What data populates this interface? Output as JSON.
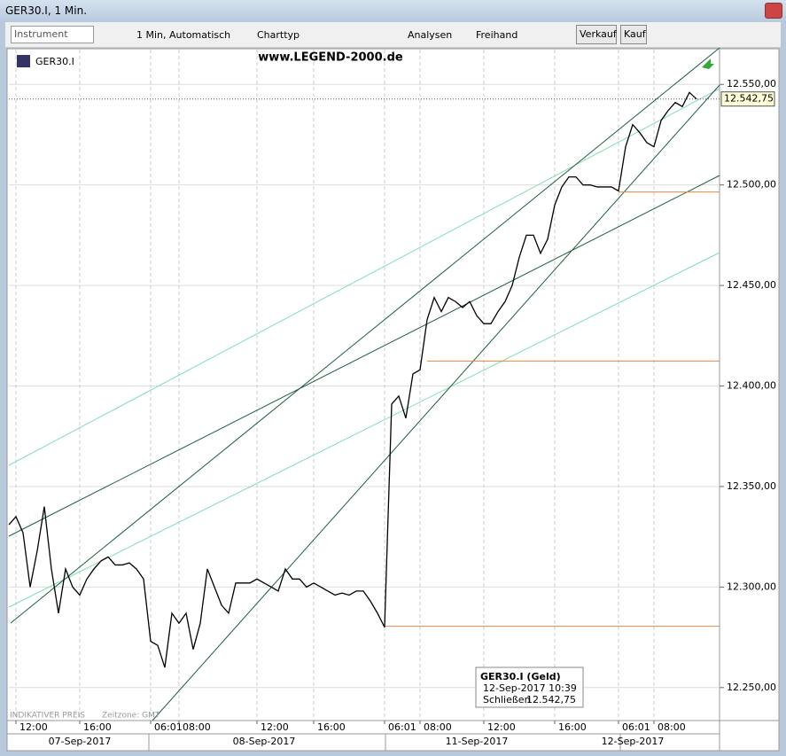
{
  "window": {
    "title": "GER30.I, 1 Min."
  },
  "toolbar": {
    "instrument": "Instrument",
    "interval": "1 Min, Automatisch",
    "chart_type": "Charttyp",
    "analyses": "Analysen",
    "freehand": "Freihand",
    "sell": "Verkauf",
    "buy": "Kauf"
  },
  "chart_data": {
    "type": "line",
    "watermark": "www.LEGEND-2000.de",
    "footer": "INDIKATIVER PREIS",
    "timezone": "Zeitzone: GMT",
    "categories": [
      null,
      "12:00",
      null,
      null,
      null,
      null,
      null,
      null,
      null,
      null,
      "16:00",
      null,
      null,
      null,
      null,
      null,
      null,
      null,
      null,
      null,
      "06:01",
      null,
      null,
      null,
      "08:00",
      null,
      null,
      null,
      null,
      null,
      null,
      null,
      null,
      null,
      null,
      "12:00",
      null,
      null,
      null,
      null,
      null,
      null,
      null,
      "16:00",
      null,
      null,
      null,
      null,
      null,
      null,
      null,
      null,
      null,
      "06:01",
      null,
      null,
      null,
      null,
      "08:00",
      null,
      null,
      null,
      null,
      null,
      null,
      null,
      null,
      "12:00",
      null,
      null,
      null,
      null,
      null,
      null,
      null,
      null,
      null,
      "16:00",
      null,
      null,
      null,
      null,
      null,
      null,
      null,
      null,
      "06:01",
      null,
      null,
      null,
      null,
      "08:00",
      null,
      null,
      null,
      null,
      null,
      null,
      null,
      null,
      null
    ],
    "day_labels": [
      null,
      null,
      null,
      null,
      null,
      null,
      null,
      null,
      null,
      null,
      "07-Sep-2017",
      null,
      null,
      null,
      null,
      null,
      null,
      null,
      null,
      null,
      null,
      null,
      null,
      null,
      null,
      null,
      null,
      null,
      null,
      null,
      null,
      null,
      null,
      null,
      null,
      null,
      "08-Sep-2017",
      null,
      null,
      null,
      null,
      null,
      null,
      null,
      null,
      null,
      null,
      null,
      null,
      null,
      null,
      null,
      null,
      null,
      null,
      null,
      null,
      null,
      null,
      null,
      null,
      null,
      null,
      null,
      null,
      null,
      "11-Sep-2017",
      null,
      null,
      null,
      null,
      null,
      null,
      null,
      null,
      null,
      null,
      null,
      null,
      null,
      null,
      null,
      null,
      null,
      null,
      null,
      null,
      null,
      "12-Sep-2017",
      null,
      null,
      null,
      null,
      null,
      null,
      null,
      null
    ],
    "series": [
      {
        "name": "GER30.I",
        "color": "#000000",
        "values": [
          12331,
          12335,
          12327,
          12300,
          12318,
          12340,
          12309,
          12287,
          12309,
          12300,
          12296,
          12304,
          12309,
          12313,
          12315,
          12311,
          12311,
          12312,
          12309,
          12304,
          12273,
          12271,
          12260,
          12287,
          12282,
          12287,
          12269,
          12282,
          12309,
          12300,
          12291,
          12287,
          12302,
          12302,
          12302,
          12304,
          12302,
          12300,
          12298,
          12309,
          12304,
          12304,
          12300,
          12302,
          12300,
          12298,
          12296,
          12297,
          12296,
          12298,
          12298,
          12293,
          12287,
          12280,
          12391,
          12395,
          12384,
          12406,
          12408,
          12433,
          12444,
          12437,
          12444,
          12442,
          12439,
          12442,
          12435,
          12431,
          12431,
          12437,
          12442,
          12450,
          12464,
          12475,
          12475,
          12466,
          12473,
          12490,
          12499,
          12504,
          12504,
          12500,
          12500,
          12499,
          12499,
          12499,
          12497,
          12519,
          12530,
          12526,
          12521,
          12519,
          12532,
          12537,
          12541,
          12539,
          12546,
          12542.75,
          null,
          null,
          null
        ]
      }
    ],
    "ylim": [
      12233.6,
      12567.3
    ],
    "yticks": [
      {
        "value": 12250,
        "label": "12.250,00"
      },
      {
        "value": 12300,
        "label": "12.300,00"
      },
      {
        "value": 12350,
        "label": "12.350,00"
      },
      {
        "value": 12400,
        "label": "12.400,00"
      },
      {
        "value": 12450,
        "label": "12.450,00"
      },
      {
        "value": 12500,
        "label": "12.500,00"
      },
      {
        "value": 12550,
        "label": "12.550,00"
      }
    ],
    "grid": true,
    "levels": [
      {
        "value": 12496.5,
        "color": "#e08a4a"
      },
      {
        "value": 12412.4,
        "color": "#e08a4a"
      },
      {
        "value": 12280.5,
        "color": "#e08a4a"
      }
    ],
    "current_price": {
      "value": 12542.75,
      "label": "12.542,75"
    },
    "tooltip": {
      "title": "GER30.I (Geld)",
      "time": "12-Sep-2017 10:39",
      "field": "Schließen",
      "value": {
        "value": 12542.75,
        "label": "12.542,75"
      }
    }
  }
}
